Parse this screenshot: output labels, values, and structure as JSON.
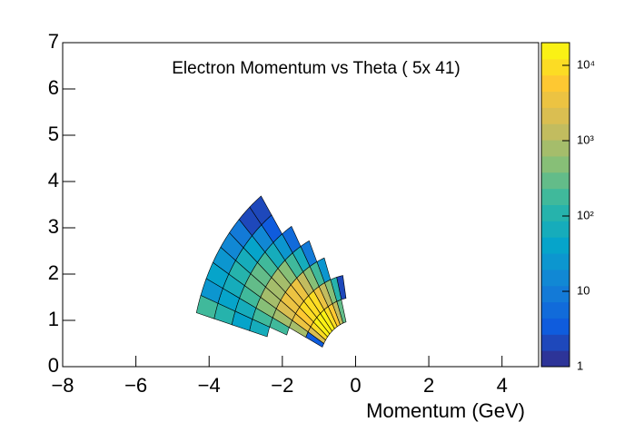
{
  "chart_data": {
    "type": "polar-heatmap",
    "title": "Electron Momentum vs Theta ( 5x 41)",
    "x_label": "Momentum (GeV)",
    "xlim": [
      -8,
      5
    ],
    "xticks": [
      {
        "value": -8,
        "label": "−8"
      },
      {
        "value": -6,
        "label": "−6"
      },
      {
        "value": -4,
        "label": "−4"
      },
      {
        "value": -2,
        "label": "−2"
      },
      0,
      2,
      4
    ],
    "ylim": [
      0,
      7
    ],
    "yticks": [
      0,
      1,
      2,
      3,
      4,
      5,
      6,
      7
    ],
    "r_edges": [
      1,
      1.5,
      2,
      2.5,
      3,
      3.5,
      4,
      4.5
    ],
    "theta_edges": [
      100,
      105,
      110,
      115,
      120,
      125,
      130,
      135,
      140,
      145,
      150,
      155,
      160,
      165
    ],
    "values": [
      [
        null,
        300,
        1500,
        5000,
        12000,
        20000,
        20000,
        15000,
        8000,
        2000,
        3,
        null,
        null
      ],
      [
        2,
        100,
        400,
        1500,
        4000,
        8000,
        12000,
        10000,
        6000,
        3000,
        800,
        null,
        null
      ],
      [
        null,
        null,
        20,
        150,
        600,
        1500,
        3000,
        4000,
        3000,
        2000,
        1000,
        200,
        null
      ],
      [
        null,
        null,
        null,
        10,
        60,
        200,
        500,
        900,
        1000,
        800,
        500,
        200,
        60
      ],
      [
        null,
        null,
        null,
        null,
        5,
        30,
        80,
        200,
        300,
        300,
        200,
        80,
        40
      ],
      [
        null,
        null,
        null,
        null,
        null,
        4,
        15,
        40,
        80,
        100,
        80,
        40,
        100
      ],
      [
        null,
        null,
        null,
        null,
        null,
        2,
        2,
        8,
        15,
        30,
        40,
        30,
        200
      ]
    ],
    "zlim": [
      1,
      20000
    ],
    "zlog": true,
    "zticks": [
      1,
      10,
      {
        "value": 100,
        "label": "10²"
      },
      {
        "value": 1000,
        "label": "10³"
      },
      {
        "value": 10000,
        "label": "10⁴"
      }
    ],
    "palette": [
      "#352a87",
      "#0f5cdd",
      "#1481d6",
      "#06a4ca",
      "#2eb7a4",
      "#87bf77",
      "#d1bb59",
      "#fec832",
      "#f9fb0e"
    ]
  }
}
